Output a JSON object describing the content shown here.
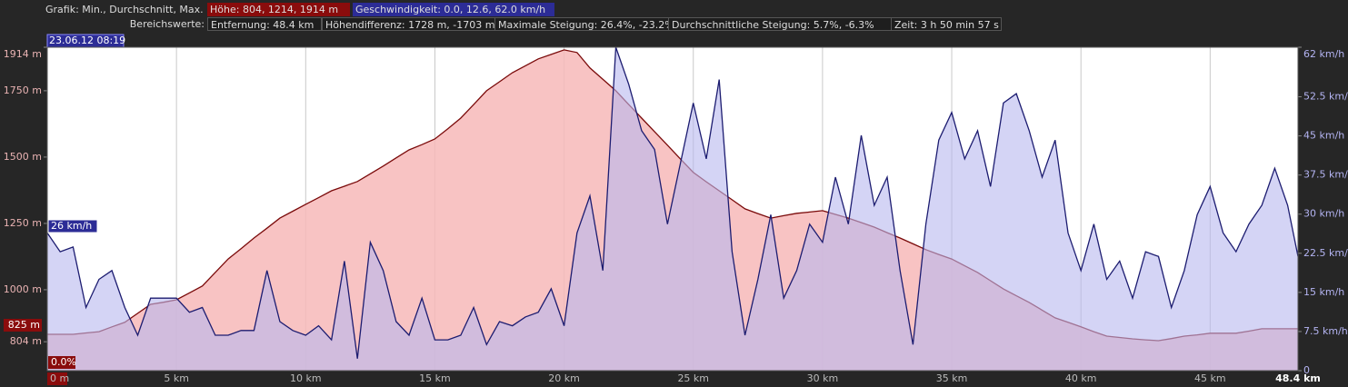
{
  "header": {
    "row1": {
      "label": "Grafik: Min., Durchschnitt, Max.",
      "altitude": "Höhe: 804, 1214, 1914 m",
      "speed": "Geschwindigkeit: 0.0, 12.6, 62.0 km/h"
    },
    "row2": {
      "label": "Bereichswerte:",
      "items": [
        "Entfernung: 48.4 km",
        "Höhendifferenz: 1728 m, -1703 m",
        "Maximale Steigung: 26.4%, -23.2%",
        "Durchschnittliche Steigung: 5.7%, -6.3%",
        "Zeit: 3 h 50 min 57 s"
      ]
    }
  },
  "chart_data": {
    "type": "area",
    "cursor_labels": {
      "time": "23.06.12 08:19",
      "speed": "26 km/h",
      "altitude": "825 m",
      "grade": "0.0%"
    },
    "x": [
      0,
      0.5,
      1,
      1.5,
      2,
      2.5,
      3,
      3.5,
      4,
      4.5,
      5,
      5.5,
      6,
      6.5,
      7,
      7.5,
      8,
      8.5,
      9,
      9.5,
      10,
      10.5,
      11,
      11.5,
      12,
      12.5,
      13,
      13.5,
      14,
      14.5,
      15,
      15.5,
      16,
      16.5,
      17,
      17.5,
      18,
      18.5,
      19,
      19.5,
      20,
      20.5,
      21,
      21.5,
      22,
      22.5,
      23,
      23.5,
      24,
      24.5,
      25,
      25.5,
      26,
      26.5,
      27,
      27.5,
      28,
      28.5,
      29,
      29.5,
      30,
      30.5,
      31,
      31.5,
      32,
      32.5,
      33,
      33.5,
      34,
      34.5,
      35,
      35.5,
      36,
      36.5,
      37,
      37.5,
      38,
      38.5,
      39,
      39.5,
      40,
      40.5,
      41,
      41.5,
      42,
      42.5,
      43,
      43.5,
      44,
      44.5,
      45,
      45.5,
      46,
      46.5,
      47,
      47.5,
      48,
      48.4
    ],
    "xlim": [
      0,
      48.4
    ],
    "xticks": [
      {
        "value": 0,
        "label": "0 m"
      },
      {
        "value": 5,
        "label": "5 km"
      },
      {
        "value": 10,
        "label": "10 km"
      },
      {
        "value": 15,
        "label": "15 km"
      },
      {
        "value": 20,
        "label": "20 km"
      },
      {
        "value": 25,
        "label": "25 km"
      },
      {
        "value": 30,
        "label": "30 km"
      },
      {
        "value": 35,
        "label": "35 km"
      },
      {
        "value": 40,
        "label": "40 km"
      },
      {
        "value": 45,
        "label": "45 km"
      },
      {
        "value": 48.4,
        "label": "48.4 km"
      }
    ],
    "xgrid": true,
    "ylim": [
      695,
      1914
    ],
    "yticks": [
      {
        "value": 1914,
        "label": "1914 m"
      },
      {
        "value": 1750,
        "label": "1750 m"
      },
      {
        "value": 1500,
        "label": "1500 m"
      },
      {
        "value": 1250,
        "label": "1250 m"
      },
      {
        "value": 1000,
        "label": "1000 m"
      },
      {
        "value": 804,
        "label": "804 m"
      }
    ],
    "y2lim": [
      0,
      62
    ],
    "y2ticks": [
      0,
      {
        "value": 7.5,
        "label": "7.5 km/h"
      },
      {
        "value": 15,
        "label": "15 km/h"
      },
      {
        "value": 22.5,
        "label": "22.5 km/h"
      },
      {
        "value": 30,
        "label": "30 km/h"
      },
      {
        "value": 37.5,
        "label": "37.5 km/h"
      },
      {
        "value": 45,
        "label": "45 km/h"
      },
      {
        "value": 52.5,
        "label": "52.5 km/h"
      },
      {
        "value": 62,
        "label": "62 km/h"
      }
    ],
    "series": [
      {
        "name": "Höhe",
        "color": "#7a0a0a",
        "fill": "#f7b9b9",
        "axis": "y",
        "values": [
          832,
          832,
          832,
          837,
          842,
          860,
          877,
          911,
          945,
          953,
          962,
          988,
          1014,
          1065,
          1116,
          1155,
          1195,
          1232,
          1270,
          1296,
          1322,
          1347,
          1373,
          1390,
          1408,
          1437,
          1466,
          1497,
          1527,
          1547,
          1568,
          1607,
          1647,
          1698,
          1750,
          1784,
          1818,
          1844,
          1870,
          1887,
          1904,
          1894,
          1836,
          1793,
          1750,
          1698,
          1647,
          1596,
          1545,
          1493,
          1442,
          1407,
          1373,
          1339,
          1305,
          1287,
          1270,
          1279,
          1288,
          1293,
          1298,
          1284,
          1270,
          1253,
          1236,
          1215,
          1195,
          1173,
          1151,
          1133,
          1116,
          1090,
          1065,
          1034,
          1003,
          977,
          952,
          923,
          894,
          877,
          860,
          842,
          825,
          820,
          815,
          811,
          808,
          816,
          825,
          830,
          836,
          836,
          836,
          844,
          853,
          853,
          853,
          853
        ]
      },
      {
        "name": "Geschwindigkeit",
        "color": "#1c1c70",
        "fill": "#b8b8ee",
        "axis": "y2",
        "values": [
          26.4,
          22.8,
          23.7,
          12.1,
          17.5,
          19.2,
          12.1,
          6.8,
          13.9,
          13.9,
          13.9,
          11.2,
          12.1,
          6.8,
          6.8,
          7.7,
          7.7,
          19.2,
          9.4,
          7.7,
          6.8,
          8.6,
          5.9,
          21.0,
          2.3,
          24.6,
          19.2,
          9.4,
          6.8,
          13.9,
          5.9,
          5.9,
          6.8,
          12.1,
          5.0,
          9.4,
          8.6,
          10.3,
          11.2,
          15.7,
          8.6,
          26.4,
          33.5,
          19.2,
          62,
          54.9,
          46.0,
          42.4,
          28.1,
          39.7,
          51.3,
          40.6,
          55.8,
          22.8,
          6.8,
          17.5,
          29.9,
          13.9,
          19.2,
          28.1,
          24.6,
          37.1,
          28.1,
          45.1,
          31.7,
          37.1,
          19.2,
          5.0,
          28.1,
          44.2,
          49.5,
          40.6,
          46.0,
          35.3,
          51.3,
          53.1,
          46.0,
          37.1,
          44.2,
          26.4,
          19.2,
          28.1,
          17.5,
          21.0,
          13.9,
          22.8,
          21.9,
          12.1,
          19.2,
          29.9,
          35.3,
          26.4,
          22.8,
          28.1,
          31.7,
          38.8,
          31.7,
          21.9
        ]
      }
    ]
  }
}
